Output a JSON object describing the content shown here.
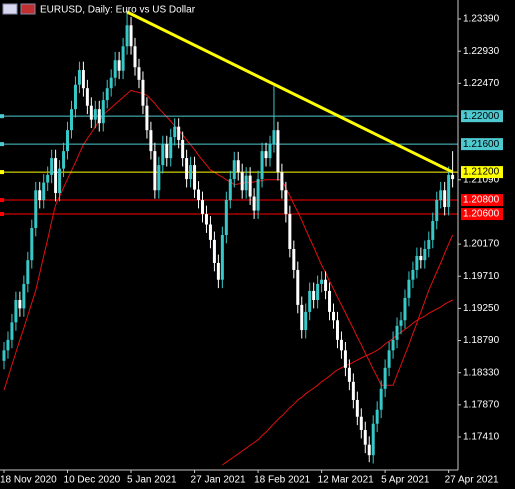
{
  "chart_data": {
    "type": "candlestick",
    "title": "EURUSD, Daily:  Euro vs US Dollar",
    "categories": [
      "18 Nov 2020",
      null,
      null,
      null,
      null,
      null,
      null,
      null,
      null,
      null,
      null,
      null,
      null,
      null,
      null,
      null,
      "10 Dec 2020",
      null,
      null,
      null,
      null,
      null,
      null,
      null,
      null,
      null,
      null,
      null,
      null,
      null,
      null,
      null,
      "5 Jan 2021",
      null,
      null,
      null,
      null,
      null,
      null,
      null,
      null,
      null,
      null,
      null,
      null,
      null,
      null,
      null,
      "27 Jan 2021",
      null,
      null,
      null,
      null,
      null,
      null,
      null,
      null,
      null,
      null,
      null,
      null,
      null,
      null,
      null,
      "18 Feb 2021",
      null,
      null,
      null,
      null,
      null,
      null,
      null,
      null,
      null,
      null,
      null,
      null,
      null,
      null,
      null,
      "12 Mar 2021",
      null,
      null,
      null,
      null,
      null,
      null,
      null,
      null,
      null,
      null,
      null,
      null,
      null,
      null,
      null,
      "5 Apr 2021",
      null,
      null,
      null,
      null,
      null,
      null,
      null,
      null,
      null,
      null,
      null,
      null,
      null,
      null,
      null,
      "27 Apr 2021",
      null
    ],
    "ohlc": [
      [
        1.185,
        1.1877,
        1.1838,
        1.1865
      ],
      [
        1.1865,
        1.1892,
        1.1853,
        1.188
      ],
      [
        1.188,
        1.1917,
        1.1868,
        1.1905
      ],
      [
        1.1905,
        1.1949,
        1.1893,
        1.1937
      ],
      [
        1.1937,
        1.1949,
        1.1913,
        1.1925
      ],
      [
        1.1925,
        1.1972,
        1.1913,
        1.196
      ],
      [
        1.196,
        1.2006,
        1.1948,
        1.1994
      ],
      [
        1.1994,
        1.2052,
        1.1982,
        1.204
      ],
      [
        1.204,
        1.2106,
        1.2028,
        1.2094
      ],
      [
        1.2094,
        1.2106,
        1.2068,
        1.208
      ],
      [
        1.208,
        1.2117,
        1.2068,
        1.2105
      ],
      [
        1.2105,
        1.2128,
        1.2093,
        1.2116
      ],
      [
        1.2116,
        1.2152,
        1.2104,
        1.214
      ],
      [
        1.214,
        1.2152,
        1.2078,
        1.209
      ],
      [
        1.209,
        1.2137,
        1.2078,
        1.2125
      ],
      [
        1.2125,
        1.2162,
        1.2113,
        1.215
      ],
      [
        1.215,
        1.2192,
        1.2138,
        1.218
      ],
      [
        1.218,
        1.2222,
        1.2168,
        1.221
      ],
      [
        1.221,
        1.2257,
        1.2198,
        1.2245
      ],
      [
        1.2245,
        1.2278,
        1.2233,
        1.2266
      ],
      [
        1.2266,
        1.2278,
        1.2228,
        1.224
      ],
      [
        1.224,
        1.2252,
        1.2203,
        1.2215
      ],
      [
        1.2215,
        1.2227,
        1.2183,
        1.2195
      ],
      [
        1.2195,
        1.2222,
        1.2183,
        1.221
      ],
      [
        1.221,
        1.2222,
        1.2178,
        1.219
      ],
      [
        1.219,
        1.2235,
        1.2178,
        1.2223
      ],
      [
        1.2223,
        1.2252,
        1.2211,
        1.224
      ],
      [
        1.224,
        1.2267,
        1.2228,
        1.2255
      ],
      [
        1.2255,
        1.2292,
        1.2243,
        1.228
      ],
      [
        1.228,
        1.2292,
        1.2253,
        1.2265
      ],
      [
        1.2265,
        1.2312,
        1.2253,
        1.23
      ],
      [
        1.23,
        1.2349,
        1.2288,
        1.233
      ],
      [
        1.233,
        1.2342,
        1.2288,
        1.23
      ],
      [
        1.23,
        1.2312,
        1.2258,
        1.227
      ],
      [
        1.227,
        1.2282,
        1.224,
        1.2252
      ],
      [
        1.2252,
        1.2264,
        1.2203,
        1.2215
      ],
      [
        1.2215,
        1.2227,
        1.2168,
        1.218
      ],
      [
        1.218,
        1.2192,
        1.2138,
        1.215
      ],
      [
        1.215,
        1.2162,
        1.2082,
        1.2094
      ],
      [
        1.2094,
        1.2142,
        1.2082,
        1.213
      ],
      [
        1.213,
        1.2172,
        1.2118,
        1.216
      ],
      [
        1.216,
        1.2172,
        1.2128,
        1.214
      ],
      [
        1.214,
        1.2182,
        1.2128,
        1.217
      ],
      [
        1.217,
        1.2197,
        1.2158,
        1.2185
      ],
      [
        1.2185,
        1.2197,
        1.2154,
        1.2166
      ],
      [
        1.2166,
        1.2178,
        1.2128,
        1.214
      ],
      [
        1.214,
        1.2152,
        1.2098,
        1.211
      ],
      [
        1.211,
        1.2142,
        1.2098,
        1.213
      ],
      [
        1.213,
        1.2142,
        1.2083,
        1.2095
      ],
      [
        1.2095,
        1.2107,
        1.2068,
        1.208
      ],
      [
        1.208,
        1.2092,
        1.2048,
        1.206
      ],
      [
        1.206,
        1.2072,
        1.2033,
        1.2045
      ],
      [
        1.2045,
        1.2057,
        1.2011,
        1.2023
      ],
      [
        1.2023,
        1.2035,
        1.1978,
        1.199
      ],
      [
        1.199,
        1.2002,
        1.1954,
        1.1966
      ],
      [
        1.1966,
        1.2042,
        1.1954,
        1.203
      ],
      [
        1.203,
        1.2092,
        1.2018,
        1.208
      ],
      [
        1.208,
        1.2122,
        1.2068,
        1.211
      ],
      [
        1.211,
        1.2149,
        1.2098,
        1.2137
      ],
      [
        1.2137,
        1.2149,
        1.2108,
        1.212
      ],
      [
        1.212,
        1.2132,
        1.2082,
        1.2094
      ],
      [
        1.2094,
        1.2127,
        1.2082,
        1.2115
      ],
      [
        1.2115,
        1.2127,
        1.2073,
        1.2085
      ],
      [
        1.2085,
        1.2097,
        1.2053,
        1.2065
      ],
      [
        1.2065,
        1.2122,
        1.2053,
        1.211
      ],
      [
        1.211,
        1.2162,
        1.2098,
        1.215
      ],
      [
        1.215,
        1.2162,
        1.2128,
        1.214
      ],
      [
        1.214,
        1.2172,
        1.2128,
        1.216
      ],
      [
        1.216,
        1.2243,
        1.2148,
        1.218
      ],
      [
        1.218,
        1.2192,
        1.2108,
        1.212
      ],
      [
        1.212,
        1.2132,
        1.2082,
        1.2094
      ],
      [
        1.2094,
        1.2106,
        1.2048,
        1.206
      ],
      [
        1.206,
        1.2072,
        1.1998,
        1.201
      ],
      [
        1.201,
        1.2022,
        1.1968,
        1.198
      ],
      [
        1.198,
        1.1992,
        1.1918,
        1.193
      ],
      [
        1.193,
        1.1942,
        1.1882,
        1.1894
      ],
      [
        1.1894,
        1.1932,
        1.1882,
        1.192
      ],
      [
        1.192,
        1.1962,
        1.1908,
        1.195
      ],
      [
        1.195,
        1.1962,
        1.1925,
        1.1937
      ],
      [
        1.1937,
        1.1972,
        1.1925,
        1.196
      ],
      [
        1.196,
        1.1978,
        1.1948,
        1.1966
      ],
      [
        1.1966,
        1.1978,
        1.1938,
        1.195
      ],
      [
        1.195,
        1.1962,
        1.1908,
        1.192
      ],
      [
        1.192,
        1.1932,
        1.1896,
        1.1908
      ],
      [
        1.1908,
        1.192,
        1.1868,
        1.188
      ],
      [
        1.188,
        1.1892,
        1.1853,
        1.1865
      ],
      [
        1.1865,
        1.1877,
        1.1828,
        1.184
      ],
      [
        1.184,
        1.1852,
        1.1808,
        1.182
      ],
      [
        1.182,
        1.1832,
        1.1782,
        1.1794
      ],
      [
        1.1794,
        1.1806,
        1.1758,
        1.177
      ],
      [
        1.177,
        1.1782,
        1.1739,
        1.1751
      ],
      [
        1.1751,
        1.1763,
        1.1718,
        1.173
      ],
      [
        1.173,
        1.1742,
        1.1705,
        1.1715
      ],
      [
        1.1715,
        1.1772,
        1.1703,
        1.176
      ],
      [
        1.176,
        1.1792,
        1.1748,
        1.178
      ],
      [
        1.178,
        1.1822,
        1.1768,
        1.181
      ],
      [
        1.181,
        1.1852,
        1.1798,
        1.184
      ],
      [
        1.184,
        1.1877,
        1.1828,
        1.1865
      ],
      [
        1.1865,
        1.1892,
        1.1853,
        1.188
      ],
      [
        1.188,
        1.1912,
        1.1868,
        1.19
      ],
      [
        1.19,
        1.192,
        1.1888,
        1.1908
      ],
      [
        1.1908,
        1.1952,
        1.1896,
        1.194
      ],
      [
        1.194,
        1.1978,
        1.1928,
        1.1966
      ],
      [
        1.1966,
        1.1992,
        1.1954,
        1.198
      ],
      [
        1.198,
        1.2012,
        1.1968,
        1.2
      ],
      [
        1.2,
        1.2012,
        1.1982,
        1.1994
      ],
      [
        1.1994,
        1.2022,
        1.1982,
        1.201
      ],
      [
        1.201,
        1.2035,
        1.1998,
        1.2023
      ],
      [
        1.2023,
        1.2062,
        1.2011,
        1.205
      ],
      [
        1.205,
        1.2092,
        1.2038,
        1.208
      ],
      [
        1.208,
        1.2106,
        1.2068,
        1.2094
      ],
      [
        1.2094,
        1.2106,
        1.2058,
        1.207
      ],
      [
        1.207,
        1.2128,
        1.2058,
        1.2116
      ],
      [
        1.2116,
        1.215,
        1.2098,
        1.211
      ]
    ],
    "up_color": "#38c8c8",
    "down_color": "#ffffff",
    "series": [
      {
        "type": "line",
        "color": "#e01010",
        "values": [
          1.1808,
          1.1826,
          1.1844,
          1.1862,
          1.188,
          1.1897,
          1.1915,
          1.1933,
          1.1951,
          1.1975,
          1.2,
          1.2024,
          1.2049,
          1.2073,
          1.2085,
          1.2098,
          1.211,
          1.2122,
          1.2134,
          1.2147,
          1.2159,
          1.2168,
          1.2176,
          1.2185,
          1.2193,
          1.2202,
          1.2207,
          1.2212,
          1.2217,
          1.2222,
          1.2227,
          1.2232,
          1.2237,
          1.2235,
          1.2234,
          1.2232,
          1.223,
          1.2224,
          1.2218,
          1.2211,
          1.2205,
          1.2199,
          1.2193,
          1.2186,
          1.218,
          1.2173,
          1.2166,
          1.2159,
          1.2152,
          1.2144,
          1.2137,
          1.213,
          1.2123,
          1.212,
          1.2116,
          1.2113,
          1.2109,
          1.2106,
          1.2102,
          1.2103,
          1.2104,
          1.2105,
          1.2105,
          1.2106,
          1.2107,
          1.2108,
          1.2109,
          1.2109,
          1.2109,
          1.2109,
          1.2109,
          1.2097,
          1.2086,
          1.2074,
          1.2063,
          1.2051,
          1.2038,
          1.2025,
          1.2013,
          1.2,
          1.1987,
          1.1976,
          1.1964,
          1.1953,
          1.1941,
          1.193,
          1.1919,
          1.1907,
          1.1896,
          1.1884,
          1.1873,
          1.1861,
          1.185,
          1.1838,
          1.1827,
          1.1815,
          1.1815,
          1.1815,
          1.1815,
          1.183,
          1.1844,
          1.1859,
          1.1873,
          1.1889,
          1.1904,
          1.192,
          1.1935,
          1.1951,
          1.1964,
          1.1977,
          1.199,
          1.2004,
          1.2017,
          1.203
        ]
      },
      {
        "type": "line",
        "color": "#e01010",
        "values": [
          null,
          null,
          null,
          null,
          null,
          null,
          null,
          null,
          null,
          null,
          null,
          null,
          null,
          null,
          null,
          null,
          null,
          null,
          null,
          null,
          null,
          null,
          null,
          null,
          null,
          null,
          null,
          null,
          null,
          null,
          null,
          null,
          null,
          null,
          null,
          null,
          null,
          null,
          null,
          null,
          null,
          null,
          null,
          null,
          null,
          null,
          null,
          null,
          null,
          null,
          null,
          null,
          null,
          null,
          null,
          1.1701,
          1.1705,
          1.1709,
          1.1713,
          1.1717,
          1.1721,
          1.1725,
          1.1729,
          1.1733,
          1.1737,
          1.1743,
          1.1748,
          1.1754,
          1.176,
          1.1766,
          1.1771,
          1.1777,
          1.1783,
          1.1788,
          1.1794,
          1.1798,
          1.1803,
          1.1807,
          1.1811,
          1.1815,
          1.182,
          1.1824,
          1.1828,
          1.1833,
          1.1837,
          1.184,
          1.1843,
          1.1845,
          1.1848,
          1.1851,
          1.1854,
          1.1857,
          1.1859,
          1.1862,
          1.1865,
          1.1869,
          1.1874,
          1.1878,
          1.1882,
          1.1887,
          1.1891,
          1.1895,
          1.1899,
          1.1904,
          1.1908,
          1.1911,
          1.1914,
          1.1918,
          1.1921,
          1.1924,
          1.1927,
          1.1931,
          1.1934,
          1.1937
        ]
      }
    ],
    "trend_line": {
      "color": "#ffff00",
      "values": [
        1.2349,
        1.212
      ]
    },
    "levels": [
      {
        "value": 1.22,
        "label": "1.22000",
        "color": "#4ec9d0"
      },
      {
        "value": 1.216,
        "label": "1.21600",
        "color": "#4ec9d0"
      },
      {
        "value": 1.212,
        "label": "1.21200",
        "color": "#ffff00"
      },
      {
        "value": 1.208,
        "label": "1.20800",
        "color": "#ff0000"
      },
      {
        "value": 1.206,
        "label": "1.20600",
        "color": "#ff0000"
      }
    ],
    "ylim": [
      1.16938,
      1.23662
    ],
    "yticks": [
      {
        "value": 1.2339,
        "label": "1.23390"
      },
      {
        "value": 1.2293,
        "label": "1.22930"
      },
      {
        "value": 1.2247,
        "label": "1.22470"
      },
      {
        "value": 1.2109,
        "label": "1.21090"
      },
      {
        "value": 1.2017,
        "label": "1.20170"
      },
      {
        "value": 1.1971,
        "label": "1.19710"
      },
      {
        "value": 1.1925,
        "label": "1.19250"
      },
      {
        "value": 1.1879,
        "label": "1.18790"
      },
      {
        "value": 1.1833,
        "label": "1.18330"
      },
      {
        "value": 1.1787,
        "label": "1.17870"
      },
      {
        "value": 1.1741,
        "label": "1.17410"
      }
    ],
    "grid": false
  }
}
